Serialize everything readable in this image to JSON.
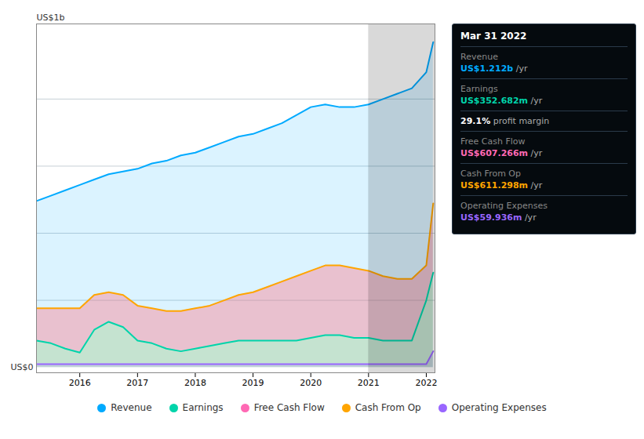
{
  "chart_data": {
    "type": "area",
    "x": [
      2015.25,
      2015.5,
      2015.75,
      2016.0,
      2016.25,
      2016.5,
      2016.75,
      2017.0,
      2017.25,
      2017.5,
      2017.75,
      2018.0,
      2018.25,
      2018.5,
      2018.75,
      2019.0,
      2019.25,
      2019.5,
      2019.75,
      2020.0,
      2020.25,
      2020.5,
      2020.75,
      2021.0,
      2021.25,
      2021.5,
      2021.75,
      2022.0,
      2022.12
    ],
    "series": [
      {
        "name": "Revenue",
        "color": "#00aaff",
        "values": [
          0.62,
          0.64,
          0.66,
          0.68,
          0.7,
          0.72,
          0.73,
          0.74,
          0.76,
          0.77,
          0.79,
          0.8,
          0.82,
          0.84,
          0.86,
          0.87,
          0.89,
          0.91,
          0.94,
          0.97,
          0.98,
          0.97,
          0.97,
          0.98,
          1.0,
          1.02,
          1.04,
          1.1,
          1.212
        ]
      },
      {
        "name": "Earnings",
        "color": "#00d4aa",
        "values": [
          0.1,
          0.09,
          0.07,
          0.055,
          0.14,
          0.17,
          0.15,
          0.1,
          0.09,
          0.07,
          0.06,
          0.07,
          0.08,
          0.09,
          0.1,
          0.1,
          0.1,
          0.1,
          0.1,
          0.11,
          0.12,
          0.12,
          0.11,
          0.11,
          0.1,
          0.1,
          0.1,
          0.25,
          0.353
        ]
      },
      {
        "name": "Free Cash Flow",
        "color": "#ff69b4",
        "type": "band",
        "between": [
          "Earnings",
          "Cash From Op"
        ]
      },
      {
        "name": "Cash From Op",
        "color": "#ffa500",
        "values": [
          0.22,
          0.22,
          0.22,
          0.22,
          0.27,
          0.28,
          0.27,
          0.23,
          0.22,
          0.21,
          0.21,
          0.22,
          0.23,
          0.25,
          0.27,
          0.28,
          0.3,
          0.32,
          0.34,
          0.36,
          0.38,
          0.38,
          0.37,
          0.36,
          0.34,
          0.33,
          0.33,
          0.38,
          0.611
        ]
      },
      {
        "name": "Operating Expenses",
        "color": "#9966ff",
        "values": [
          0.012,
          0.012,
          0.012,
          0.012,
          0.012,
          0.012,
          0.012,
          0.012,
          0.012,
          0.012,
          0.012,
          0.012,
          0.012,
          0.012,
          0.012,
          0.012,
          0.012,
          0.012,
          0.012,
          0.012,
          0.012,
          0.012,
          0.012,
          0.012,
          0.012,
          0.012,
          0.012,
          0.012,
          0.06
        ]
      }
    ],
    "xlim": [
      2015.25,
      2022.15
    ],
    "xticks": [
      2016,
      2017,
      2018,
      2019,
      2020,
      2021,
      2022
    ],
    "ylim": [
      -0.02,
      1.28
    ],
    "yticks": [
      0.25,
      0.5,
      0.75,
      1.0
    ],
    "grid": true,
    "tick_labels": "x",
    "ylabel": "US$1b",
    "annotations": [
      "US$0"
    ],
    "highlight": [
      2021.0,
      2022.15
    ],
    "tooltip": {
      "title": "Mar 31 2022",
      "rows": [
        {
          "label": "Revenue",
          "value": "US$1.212b",
          "unit": "/yr",
          "color": "#00aaff"
        },
        {
          "label": "Earnings",
          "value": "US$352.682m",
          "unit": "/yr",
          "color": "#00d4aa"
        },
        {
          "value": "29.1%",
          "unit": "profit margin",
          "color": "#ffffff"
        },
        {
          "label": "Free Cash Flow",
          "value": "US$607.266m",
          "unit": "/yr",
          "color": "#ff69b4"
        },
        {
          "label": "Cash From Op",
          "value": "US$611.298m",
          "unit": "/yr",
          "color": "#ffa500"
        },
        {
          "label": "Operating Expenses",
          "value": "US$59.936m",
          "unit": "/yr",
          "color": "#9966ff"
        }
      ]
    },
    "legend": "bottom"
  }
}
